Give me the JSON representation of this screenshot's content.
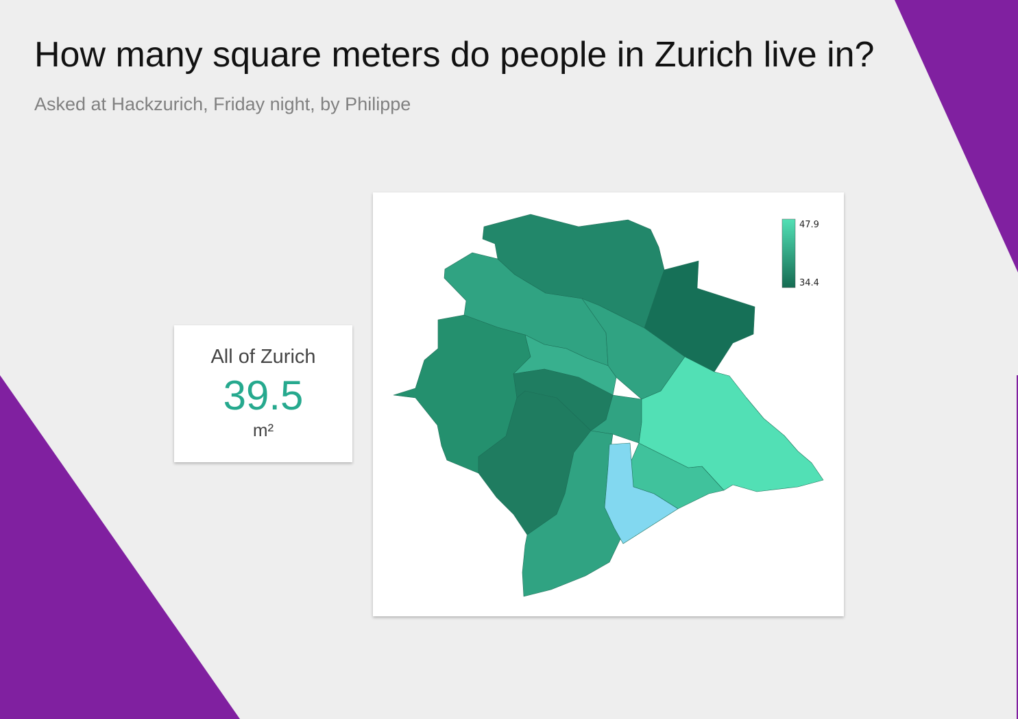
{
  "header": {
    "title": "How many square meters do people in Zurich live in?",
    "subtitle": "Asked at Hackzurich, Friday night, by Philippe"
  },
  "summary": {
    "label": "All of Zurich",
    "value": "39.5",
    "unit": "m²"
  },
  "colors": {
    "background": "#eeeeee",
    "accent_purple": "#8020a0",
    "value_text": "#26a98e",
    "scale_low": "#156b52",
    "scale_high": "#52e0b5",
    "highlight": "#82d8f0"
  },
  "legend": {
    "max_label": "47.9",
    "min_label": "34.4",
    "max": 47.9,
    "min": 34.4
  },
  "map": {
    "districts": [
      {
        "color": "#24906e"
      },
      {
        "color": "#30a382"
      },
      {
        "color": "#22876a"
      },
      {
        "color": "#1f7d61"
      },
      {
        "color": "#30a382"
      },
      {
        "color": "#167057"
      },
      {
        "color": "#38b08e"
      },
      {
        "color": "#23886a"
      },
      {
        "color": "#1f7c60"
      },
      {
        "color": "#30a382"
      },
      {
        "color": "#30a382"
      },
      {
        "color": "#40c29c"
      },
      {
        "color": "#52e0b5"
      },
      {
        "color": "#82d8f0"
      }
    ]
  }
}
